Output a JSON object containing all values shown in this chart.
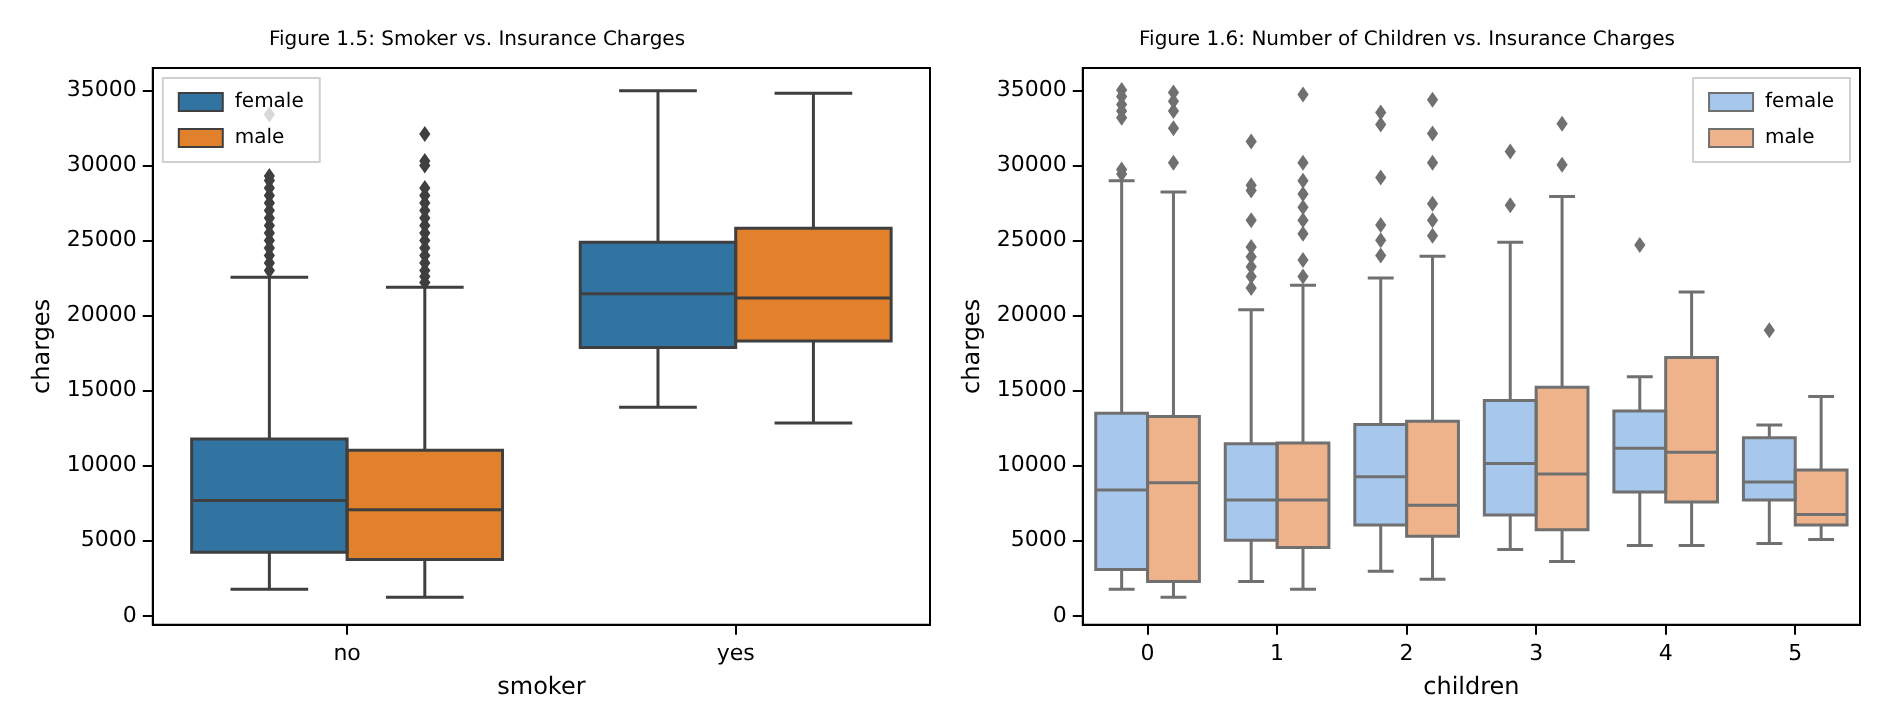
{
  "chart_data": [
    {
      "type": "box",
      "title": "Figure 1.5: Smoker vs. Insurance Charges",
      "xlabel": "smoker",
      "ylabel": "charges",
      "categories": [
        "no",
        "yes"
      ],
      "ylim": [
        -600,
        36500
      ],
      "yticks": [
        0,
        5000,
        10000,
        15000,
        20000,
        25000,
        30000,
        35000
      ],
      "grid": false,
      "legend": "top left",
      "series": [
        {
          "name": "female",
          "color": "#3274a1",
          "boxes": [
            {
              "low": 1770,
              "q1": 4240,
              "median": 7680,
              "q3": 11780,
              "high": 22550,
              "outliers": [
                23000,
                23500,
                24000,
                24500,
                25000,
                25500,
                26000,
                26500,
                27000,
                27500,
                28000,
                28500,
                29000,
                29300,
                33400
              ]
            },
            {
              "low": 13900,
              "q1": 17870,
              "median": 21450,
              "q3": 24890,
              "high": 34990
            }
          ]
        },
        {
          "name": "male",
          "color": "#e1812c",
          "boxes": [
            {
              "low": 1240,
              "q1": 3750,
              "median": 7060,
              "q3": 11030,
              "high": 21890,
              "outliers": [
                22200,
                22600,
                23000,
                23500,
                24000,
                24500,
                25000,
                25500,
                26000,
                26500,
                27000,
                27500,
                28000,
                28500,
                30000,
                30300,
                32100
              ]
            },
            {
              "low": 12840,
              "q1": 18310,
              "median": 21180,
              "q3": 25820,
              "high": 34820
            }
          ]
        }
      ]
    },
    {
      "type": "box",
      "title": "Figure 1.6: Number of Children vs. Insurance Charges",
      "xlabel": "children",
      "ylabel": "charges",
      "categories": [
        "0",
        "1",
        "2",
        "3",
        "4",
        "5"
      ],
      "ylim": [
        -600,
        36500
      ],
      "yticks": [
        0,
        5000,
        10000,
        15000,
        20000,
        25000,
        30000,
        35000
      ],
      "grid": false,
      "legend": "top right",
      "series": [
        {
          "name": "female",
          "color": "#a7c8ec",
          "boxes": [
            {
              "low": 1770,
              "q1": 3090,
              "median": 8380,
              "q3": 13500,
              "high": 28990,
              "outliers": [
                29430,
                29740,
                33190,
                33630,
                34070,
                34600,
                35040
              ]
            },
            {
              "low": 2290,
              "q1": 5030,
              "median": 7720,
              "q3": 11470,
              "high": 20390,
              "outliers": [
                21840,
                22600,
                23260,
                23920,
                24580,
                26350,
                28330,
                28680,
                31600
              ]
            },
            {
              "low": 2960,
              "q1": 6050,
              "median": 9270,
              "q3": 12750,
              "high": 22510,
              "outliers": [
                24010,
                25020,
                26040,
                29210,
                32740,
                33540
              ]
            },
            {
              "low": 4410,
              "q1": 6710,
              "median": 10150,
              "q3": 14340,
              "high": 24890,
              "outliers": [
                27360,
                30940
              ]
            },
            {
              "low": 4680,
              "q1": 8250,
              "median": 11170,
              "q3": 13640,
              "high": 15930,
              "outliers": [
                24710
              ]
            },
            {
              "low": 4810,
              "q1": 7720,
              "median": 8910,
              "q3": 11870,
              "high": 12710,
              "outliers": [
                19020
              ]
            }
          ]
        },
        {
          "name": "male",
          "color": "#efb38c",
          "boxes": [
            {
              "low": 1240,
              "q1": 2290,
              "median": 8870,
              "q3": 13280,
              "high": 28240,
              "outliers": [
                30190,
                32480,
                33630,
                34290,
                34860
              ]
            },
            {
              "low": 1770,
              "q1": 4550,
              "median": 7720,
              "q3": 11520,
              "high": 22020,
              "outliers": [
                22600,
                23700,
                25460,
                26350,
                27230,
                28110,
                28990,
                30190,
                34730
              ]
            },
            {
              "low": 2430,
              "q1": 5300,
              "median": 7370,
              "q3": 12970,
              "high": 23960,
              "outliers": [
                25330,
                26350,
                27450,
                30190,
                32130,
                34380
              ]
            },
            {
              "low": 3620,
              "q1": 5740,
              "median": 9440,
              "q3": 15220,
              "high": 27930,
              "outliers": [
                30050,
                32790
              ]
            },
            {
              "low": 4680,
              "q1": 7590,
              "median": 10900,
              "q3": 17210,
              "high": 21580
            },
            {
              "low": 5080,
              "q1": 6050,
              "median": 6750,
              "q3": 9710,
              "high": 14610
            }
          ]
        }
      ]
    }
  ]
}
